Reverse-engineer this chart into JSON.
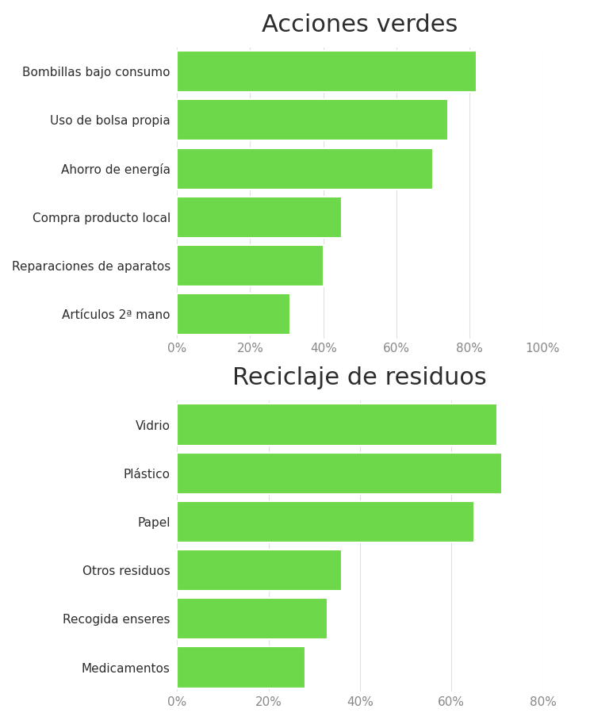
{
  "chart1": {
    "title": "Acciones verdes",
    "categories": [
      "Bombillas bajo consumo",
      "Uso de bolsa propia",
      "Ahorro de energía",
      "Compra producto local",
      "Reparaciones de aparatos",
      "Artículos 2ª mano"
    ],
    "values": [
      0.82,
      0.74,
      0.7,
      0.45,
      0.4,
      0.31
    ],
    "xlim": [
      0,
      1.0
    ],
    "xticks": [
      0,
      0.2,
      0.4,
      0.6,
      0.8,
      1.0
    ],
    "xtick_labels": [
      "0%",
      "20%",
      "40%",
      "60%",
      "80%",
      "100%"
    ]
  },
  "chart2": {
    "title": "Reciclaje de residuos",
    "categories": [
      "Vidrio",
      "Plástico",
      "Papel",
      "Otros residuos",
      "Recogida enseres",
      "Medicamentos"
    ],
    "values": [
      0.7,
      0.71,
      0.65,
      0.36,
      0.33,
      0.28
    ],
    "xlim": [
      0,
      0.8
    ],
    "xticks": [
      0,
      0.2,
      0.4,
      0.6,
      0.8
    ],
    "xtick_labels": [
      "0%",
      "20%",
      "40%",
      "60%",
      "80%"
    ]
  },
  "bar_color": "#6dd84a",
  "bar_height": 0.85,
  "background_color": "#ffffff",
  "title_fontsize": 22,
  "label_fontsize": 11,
  "tick_fontsize": 11,
  "label_color": "#2d2d2d",
  "grid_color": "#e0e0e0"
}
